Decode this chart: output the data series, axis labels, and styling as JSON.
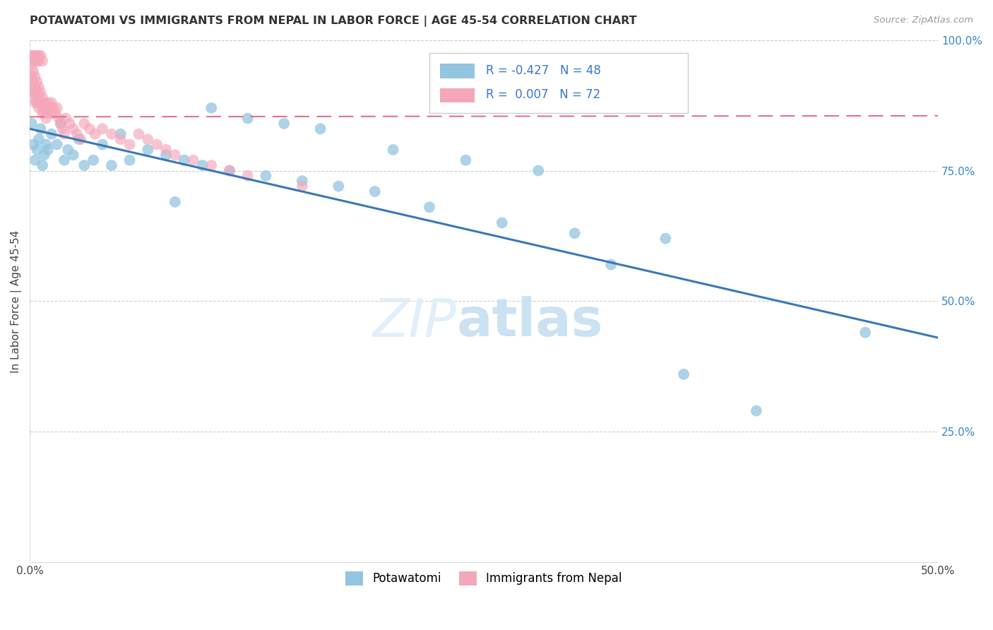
{
  "title": "POTAWATOMI VS IMMIGRANTS FROM NEPAL IN LABOR FORCE | AGE 45-54 CORRELATION CHART",
  "source": "Source: ZipAtlas.com",
  "ylabel": "In Labor Force | Age 45-54",
  "xlim": [
    0.0,
    0.5
  ],
  "ylim": [
    0.0,
    1.0
  ],
  "blue_color": "#93c4e0",
  "pink_color": "#f4a7b9",
  "trend_blue_color": "#3a78b5",
  "trend_pink_color": "#e07090",
  "blue_trend_x0": 0.0,
  "blue_trend_y0": 0.83,
  "blue_trend_x1": 0.5,
  "blue_trend_y1": 0.43,
  "pink_trend_x0": 0.0,
  "pink_trend_y0": 0.853,
  "pink_trend_x1": 0.5,
  "pink_trend_y1": 0.855,
  "blue_x": [
    0.001,
    0.002,
    0.003,
    0.004,
    0.005,
    0.006,
    0.007,
    0.008,
    0.009,
    0.01,
    0.012,
    0.015,
    0.017,
    0.019,
    0.021,
    0.024,
    0.027,
    0.03,
    0.035,
    0.04,
    0.045,
    0.05,
    0.055,
    0.065,
    0.075,
    0.085,
    0.095,
    0.11,
    0.13,
    0.15,
    0.17,
    0.19,
    0.22,
    0.26,
    0.3,
    0.35,
    0.1,
    0.12,
    0.14,
    0.16,
    0.2,
    0.24,
    0.28,
    0.36,
    0.4,
    0.46,
    0.32,
    0.08
  ],
  "blue_y": [
    0.84,
    0.8,
    0.77,
    0.79,
    0.81,
    0.83,
    0.76,
    0.78,
    0.8,
    0.79,
    0.82,
    0.8,
    0.84,
    0.77,
    0.79,
    0.78,
    0.81,
    0.76,
    0.77,
    0.8,
    0.76,
    0.82,
    0.77,
    0.79,
    0.78,
    0.77,
    0.76,
    0.75,
    0.74,
    0.73,
    0.72,
    0.71,
    0.68,
    0.65,
    0.63,
    0.62,
    0.87,
    0.85,
    0.84,
    0.83,
    0.79,
    0.77,
    0.75,
    0.36,
    0.29,
    0.44,
    0.57,
    0.69
  ],
  "pink_x": [
    0.001,
    0.001,
    0.001,
    0.002,
    0.002,
    0.002,
    0.002,
    0.003,
    0.003,
    0.003,
    0.003,
    0.004,
    0.004,
    0.004,
    0.005,
    0.005,
    0.005,
    0.006,
    0.006,
    0.007,
    0.007,
    0.007,
    0.008,
    0.008,
    0.009,
    0.009,
    0.01,
    0.01,
    0.011,
    0.012,
    0.012,
    0.013,
    0.014,
    0.015,
    0.016,
    0.017,
    0.018,
    0.019,
    0.02,
    0.022,
    0.024,
    0.026,
    0.028,
    0.03,
    0.033,
    0.036,
    0.04,
    0.045,
    0.05,
    0.055,
    0.06,
    0.065,
    0.07,
    0.075,
    0.08,
    0.09,
    0.1,
    0.11,
    0.12,
    0.15,
    0.001,
    0.001,
    0.002,
    0.002,
    0.003,
    0.003,
    0.004,
    0.004,
    0.005,
    0.005,
    0.006,
    0.007
  ],
  "pink_y": [
    0.95,
    0.93,
    0.91,
    0.94,
    0.92,
    0.9,
    0.89,
    0.93,
    0.91,
    0.9,
    0.88,
    0.92,
    0.9,
    0.88,
    0.91,
    0.89,
    0.87,
    0.9,
    0.88,
    0.89,
    0.87,
    0.86,
    0.88,
    0.86,
    0.87,
    0.85,
    0.88,
    0.86,
    0.87,
    0.88,
    0.86,
    0.87,
    0.86,
    0.87,
    0.85,
    0.84,
    0.83,
    0.82,
    0.85,
    0.84,
    0.83,
    0.82,
    0.81,
    0.84,
    0.83,
    0.82,
    0.83,
    0.82,
    0.81,
    0.8,
    0.82,
    0.81,
    0.8,
    0.79,
    0.78,
    0.77,
    0.76,
    0.75,
    0.74,
    0.72,
    0.97,
    0.96,
    0.97,
    0.96,
    0.97,
    0.96,
    0.97,
    0.96,
    0.97,
    0.96,
    0.97,
    0.96
  ]
}
